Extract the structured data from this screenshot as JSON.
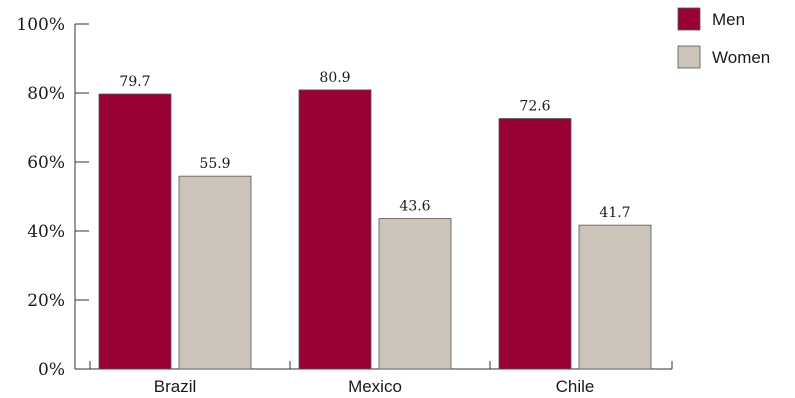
{
  "chart_data": {
    "type": "bar",
    "title": "",
    "xlabel": "",
    "ylabel": "",
    "categories": [
      "Brazil",
      "Mexico",
      "Chile"
    ],
    "series": [
      {
        "name": "Men",
        "values": [
          79.7,
          80.9,
          72.6
        ],
        "color": "#990033"
      },
      {
        "name": "Women",
        "values": [
          55.9,
          43.6,
          41.7
        ],
        "color": "#ccc4b8"
      }
    ],
    "ylim": [
      0,
      100
    ],
    "yticks": [
      0,
      20,
      40,
      60,
      80,
      100
    ],
    "ytick_labels": [
      "0%",
      "20%",
      "40%",
      "60%",
      "80%",
      "100%"
    ],
    "data_labels": [
      [
        "79.7",
        "80.9",
        "72.6"
      ],
      [
        "55.9",
        "43.6",
        "41.7"
      ]
    ],
    "legend_position": "top-right",
    "grid": false
  }
}
